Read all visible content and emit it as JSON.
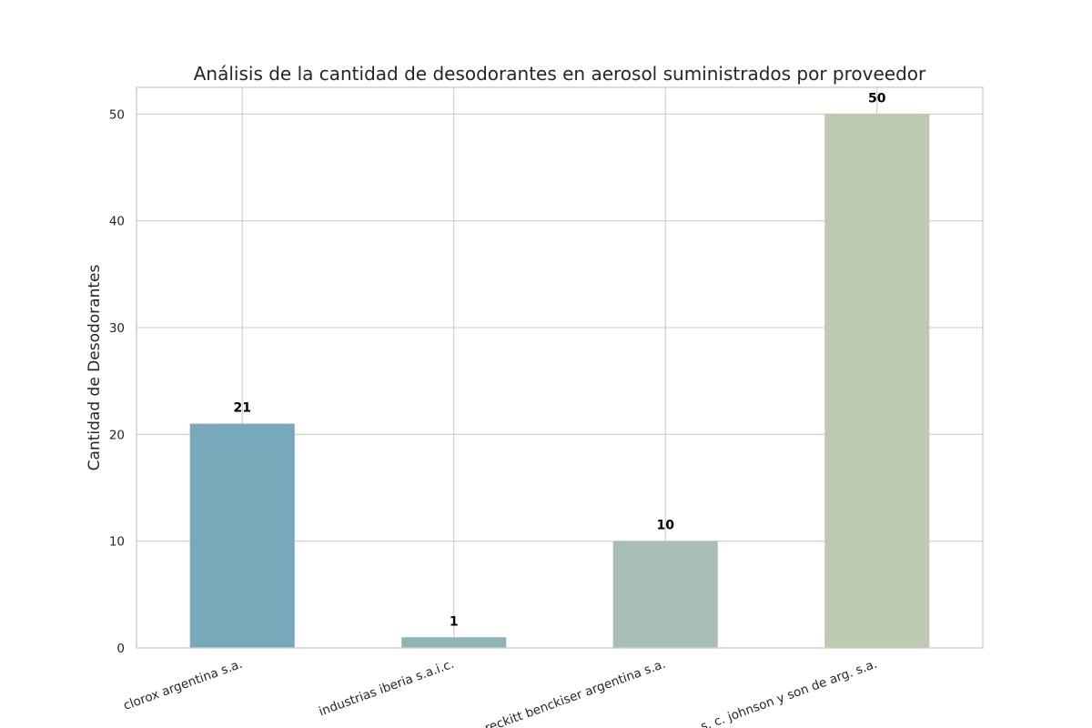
{
  "chart_data": {
    "type": "bar",
    "title": "Análisis de la cantidad de desodorantes en aerosol suministrados por proveedor",
    "xlabel": "",
    "ylabel": "Cantidad de Desodorantes",
    "categories": [
      "clorox argentina s.a.",
      "industrias iberia s.a.i.c.",
      "reckitt benckiser argentina s.a.",
      "s. c. johnson y son de arg. s.a."
    ],
    "values": [
      21,
      1,
      10,
      50
    ],
    "data_labels": [
      "21",
      "1",
      "10",
      "50"
    ],
    "bar_colors": [
      "#77a9ba",
      "#8fb3b6",
      "#a8beb4",
      "#bdc9b1"
    ],
    "ylim": [
      0,
      52.5
    ],
    "yticks": [
      0,
      10,
      20,
      30,
      40,
      50
    ],
    "ytick_labels": [
      "0",
      "10",
      "20",
      "30",
      "40",
      "50"
    ],
    "grid": true,
    "legend": "none"
  }
}
